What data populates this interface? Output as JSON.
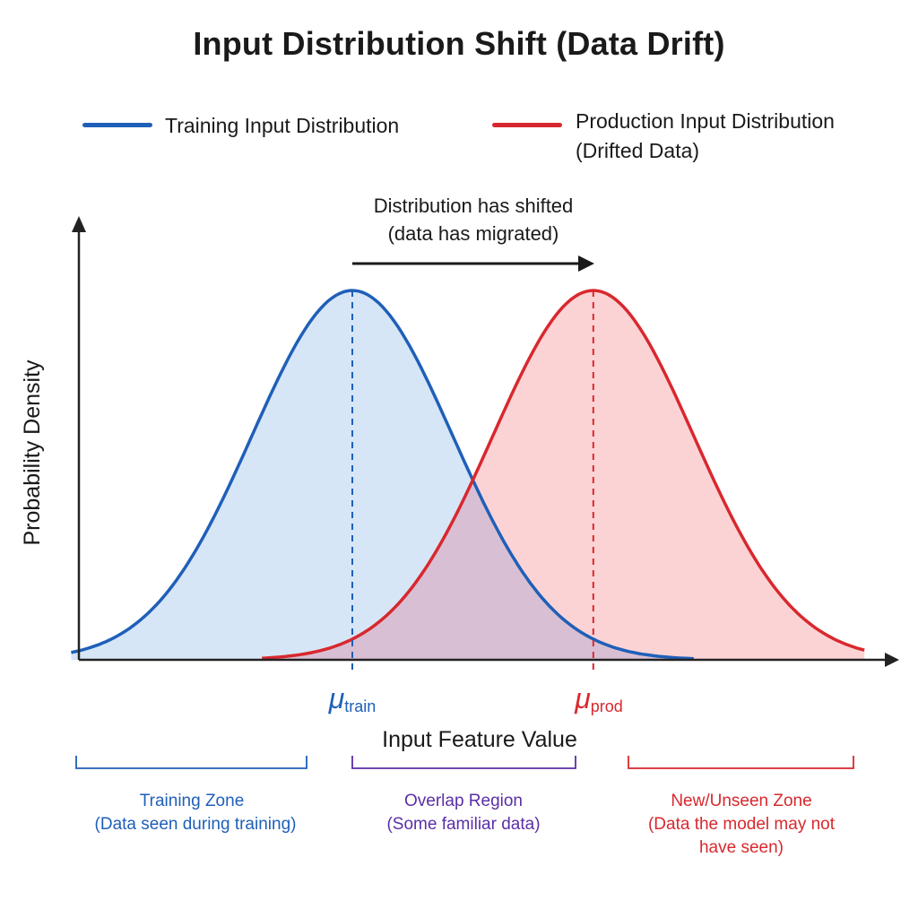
{
  "title": "Input Distribution Shift (Data Drift)",
  "colors": {
    "training": "#1f5fb8",
    "production": "#d8282e",
    "overlap": "#5b2fa6",
    "training_fill": "#d6e6f7",
    "production_fill": "#fbd3d4",
    "overlap_fill": "#d9bfd3"
  },
  "legend": {
    "training": "Training Input Distribution",
    "production_line1": "Production Input Distribution",
    "production_line2": "(Drifted Data)"
  },
  "annotation": {
    "line1": "Distribution has shifted",
    "line2": "(data has migrated)"
  },
  "axes": {
    "x_label": "Input Feature Value",
    "y_label": "Probability Density"
  },
  "means": {
    "train_symbol": "μ",
    "train_subscript": "train",
    "prod_symbol": "μ",
    "prod_subscript": "prod"
  },
  "zones": {
    "training": {
      "line1": "Training Zone",
      "line2": "(Data seen during training)"
    },
    "overlap": {
      "line1": "Overlap Region",
      "line2": "(Some familiar data)"
    },
    "unseen": {
      "line1": "New/Unseen Zone",
      "line2": "(Data the model may not",
      "line3": "have seen)"
    }
  },
  "chart_data": {
    "type": "area",
    "series": [
      {
        "name": "Training Input Distribution",
        "mean": 0,
        "std": 1,
        "x_range": [
          -2.8,
          3.4
        ]
      },
      {
        "name": "Production Input Distribution (Drifted Data)",
        "mean": 2.4,
        "std": 1,
        "x_range": [
          -0.9,
          5.1
        ]
      }
    ]
  }
}
